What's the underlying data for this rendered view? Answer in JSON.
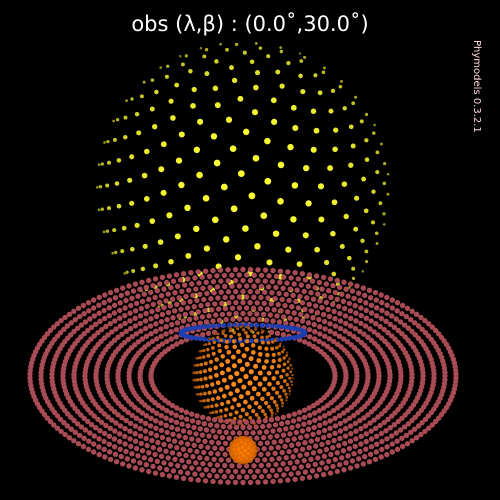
{
  "title": "obs (λ,β) : (0.0˚,30.0˚)",
  "watermark": "Phymodels 0.3.2.1",
  "colors": {
    "background": "#000000",
    "star_face": "#ffff33",
    "star_limb": "#6b6b12",
    "planet_bright": "#ff8c1a",
    "planet_dark": "#6e2e00",
    "ring": "#a84b55",
    "ring_shadow": "#1f3fb0",
    "moon": "#ff7a00",
    "title": "#ffffff",
    "watermark": "#ffd6dc"
  }
}
